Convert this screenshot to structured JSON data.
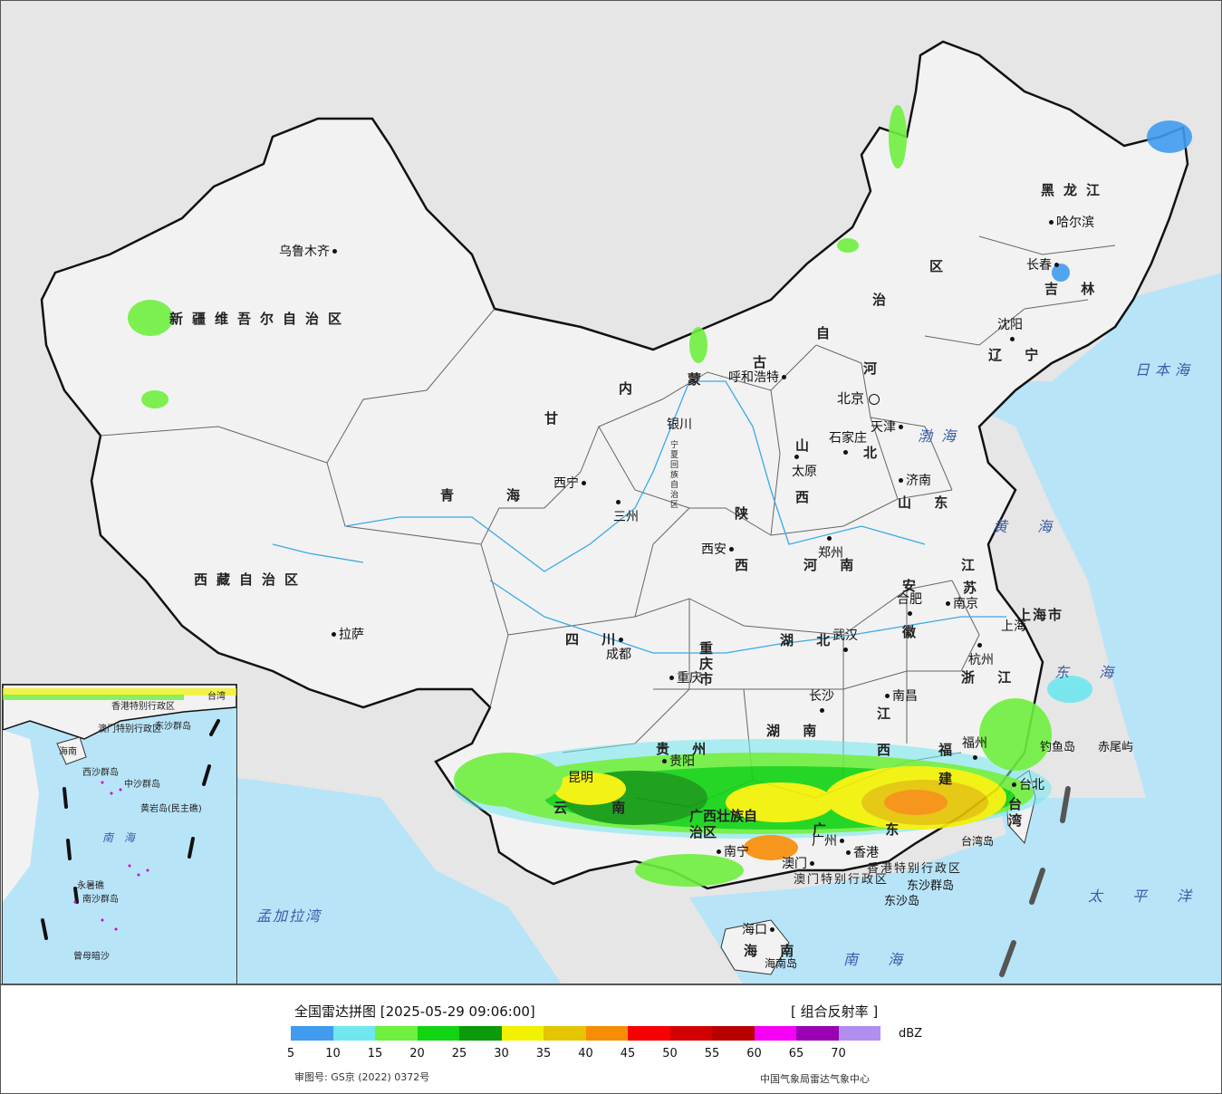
{
  "legend": {
    "title": "全国雷达拼图 [2025-05-29 09:06:00]",
    "product": "[ 组合反射率 ]",
    "unit": "dBZ",
    "ticks": [
      "5",
      "10",
      "15",
      "20",
      "25",
      "30",
      "35",
      "40",
      "45",
      "50",
      "55",
      "60",
      "65",
      "70"
    ],
    "colors": [
      "#419bef",
      "#6ee7ee",
      "#6fef3f",
      "#11d412",
      "#0a9a0a",
      "#f2f200",
      "#e5c400",
      "#f78d06",
      "#f80000",
      "#d30000",
      "#b80000",
      "#f600f6",
      "#9a00b4",
      "#b18ef0"
    ],
    "approval": "审图号: GS京 (2022) 0372号",
    "producer": "中国气象局雷达气象中心"
  },
  "map": {
    "colors": {
      "land": "#f2f2f2",
      "outside": "#e6e6e6",
      "sea": "#b8e4f8",
      "border": "#111111",
      "river": "#39a9e6"
    },
    "provinces": [
      {
        "id": "xinjiang",
        "text": "新疆维吾尔自治区"
      },
      {
        "id": "xizang",
        "text": "西藏自治区"
      },
      {
        "id": "qinghai-1",
        "text": "青"
      },
      {
        "id": "qinghai-2",
        "text": "海"
      },
      {
        "id": "gansu",
        "text": "甘"
      },
      {
        "id": "nei-1",
        "text": "内"
      },
      {
        "id": "meng",
        "text": "蒙"
      },
      {
        "id": "gu",
        "text": "古"
      },
      {
        "id": "zi",
        "text": "自"
      },
      {
        "id": "zhi",
        "text": "治"
      },
      {
        "id": "qu",
        "text": "区"
      },
      {
        "id": "heilongjiang",
        "text": "黑龙江"
      },
      {
        "id": "jilin",
        "text": "吉 林"
      },
      {
        "id": "liaoning",
        "text": "辽 宁"
      },
      {
        "id": "hebei-1",
        "text": "河"
      },
      {
        "id": "hebei-2",
        "text": "北"
      },
      {
        "id": "shanxi-1",
        "text": "山"
      },
      {
        "id": "shanxi-2",
        "text": "西"
      },
      {
        "id": "shandong",
        "text": "山 东"
      },
      {
        "id": "shaanxi-1",
        "text": "陕"
      },
      {
        "id": "shaanxi-2",
        "text": "西"
      },
      {
        "id": "henan",
        "text": "河 南"
      },
      {
        "id": "jiangsu-1",
        "text": "江"
      },
      {
        "id": "jiangsu-2",
        "text": "苏"
      },
      {
        "id": "anhui-1",
        "text": "安"
      },
      {
        "id": "anhui-2",
        "text": "徽"
      },
      {
        "id": "sichuan",
        "text": "四 川"
      },
      {
        "id": "hubei",
        "text": "湖 北"
      },
      {
        "id": "zhejiang",
        "text": "浙 江"
      },
      {
        "id": "hunan",
        "text": "湖 南"
      },
      {
        "id": "jiangxi-1",
        "text": "江"
      },
      {
        "id": "jiangxi-2",
        "text": "西"
      },
      {
        "id": "guizhou",
        "text": "贵 州"
      },
      {
        "id": "fujian-1",
        "text": "福"
      },
      {
        "id": "fujian-2",
        "text": "建"
      },
      {
        "id": "yunnan",
        "text": "云 南"
      },
      {
        "id": "guangxi",
        "text": "广西壮族自治区"
      },
      {
        "id": "guangdong",
        "text": "广 东"
      },
      {
        "id": "hainan",
        "text": "海 南"
      },
      {
        "id": "taiwan",
        "text": "台 湾"
      },
      {
        "id": "chongqing",
        "text": "重庆市"
      },
      {
        "id": "shanghai",
        "text": "上海市"
      },
      {
        "id": "ningxia",
        "text": "宁夏回族自治区"
      },
      {
        "id": "hongkong",
        "text": "香港特别行政区"
      },
      {
        "id": "macau",
        "text": "澳门特别行政区"
      }
    ],
    "cities": [
      {
        "id": "urumqi",
        "text": "乌鲁木齐"
      },
      {
        "id": "lhasa",
        "text": "拉萨"
      },
      {
        "id": "xining",
        "text": "西宁"
      },
      {
        "id": "lanzhou",
        "text": "三州"
      },
      {
        "id": "yinchuan",
        "text": "银川"
      },
      {
        "id": "hohhot",
        "text": "呼和浩特"
      },
      {
        "id": "beijing",
        "text": "北京"
      },
      {
        "id": "tianjin",
        "text": "天津"
      },
      {
        "id": "shijiazhuang",
        "text": "石家庄"
      },
      {
        "id": "taiyuan",
        "text": "太原"
      },
      {
        "id": "jinan",
        "text": "济南"
      },
      {
        "id": "xian",
        "text": "西安"
      },
      {
        "id": "zhengzhou",
        "text": "郑州"
      },
      {
        "id": "hefei",
        "text": "合肥"
      },
      {
        "id": "nanjing",
        "text": "南京"
      },
      {
        "id": "shanghai-city",
        "text": "上海"
      },
      {
        "id": "hangzhou",
        "text": "杭州"
      },
      {
        "id": "wuhan",
        "text": "武汉"
      },
      {
        "id": "chengdu",
        "text": "成都"
      },
      {
        "id": "chongqing-city",
        "text": "重庆"
      },
      {
        "id": "changsha",
        "text": "长沙"
      },
      {
        "id": "nanchang",
        "text": "南昌"
      },
      {
        "id": "guiyang",
        "text": "贵阳"
      },
      {
        "id": "kunming",
        "text": "昆明"
      },
      {
        "id": "nanning",
        "text": "南宁"
      },
      {
        "id": "guangzhou",
        "text": "广州"
      },
      {
        "id": "fuzhou",
        "text": "福州"
      },
      {
        "id": "taipei",
        "text": "台北"
      },
      {
        "id": "hongkong-city",
        "text": "香港"
      },
      {
        "id": "macau-city",
        "text": "澳门"
      },
      {
        "id": "haikou",
        "text": "海口"
      },
      {
        "id": "shenyang",
        "text": "沈阳"
      },
      {
        "id": "changchun",
        "text": "长春"
      },
      {
        "id": "harbin",
        "text": "哈尔滨"
      }
    ],
    "islands": [
      {
        "id": "diaoyu",
        "text": "钓鱼岛"
      },
      {
        "id": "chiwei",
        "text": "赤尾屿"
      },
      {
        "id": "taiwan-island",
        "text": "台湾岛"
      },
      {
        "id": "hainan-island",
        "text": "海南岛"
      },
      {
        "id": "dongsha-islands",
        "text": "东沙群岛"
      },
      {
        "id": "dongsha-island",
        "text": "东沙岛"
      }
    ],
    "seas": [
      {
        "id": "japan-sea",
        "text": "日本海"
      },
      {
        "id": "bohai",
        "text": "渤海"
      },
      {
        "id": "yellow-sea",
        "text": "黄 海"
      },
      {
        "id": "east-sea",
        "text": "东 海"
      },
      {
        "id": "pacific",
        "text": "太 平 洋"
      },
      {
        "id": "south-sea",
        "text": "南 海"
      },
      {
        "id": "bengal",
        "text": "孟加拉湾"
      }
    ],
    "inset": [
      {
        "id": "inset-taiwan",
        "text": "台湾"
      },
      {
        "id": "inset-hk",
        "text": "香港特别行政区"
      },
      {
        "id": "inset-macau",
        "text": "澳门特别行政区"
      },
      {
        "id": "inset-dongsha",
        "text": "东沙群岛"
      },
      {
        "id": "inset-xisha",
        "text": "西沙群岛"
      },
      {
        "id": "inset-zhongsha",
        "text": "中沙群岛"
      },
      {
        "id": "inset-huangyan",
        "text": "黄岩岛(民主礁)"
      },
      {
        "id": "inset-yongshu",
        "text": "永暑礁"
      },
      {
        "id": "inset-nansha",
        "text": "南沙群岛"
      },
      {
        "id": "inset-zengmu",
        "text": "曾母暗沙"
      },
      {
        "id": "inset-hainan",
        "text": "海南"
      },
      {
        "id": "inset-south-sea",
        "text": "南 海"
      }
    ]
  }
}
